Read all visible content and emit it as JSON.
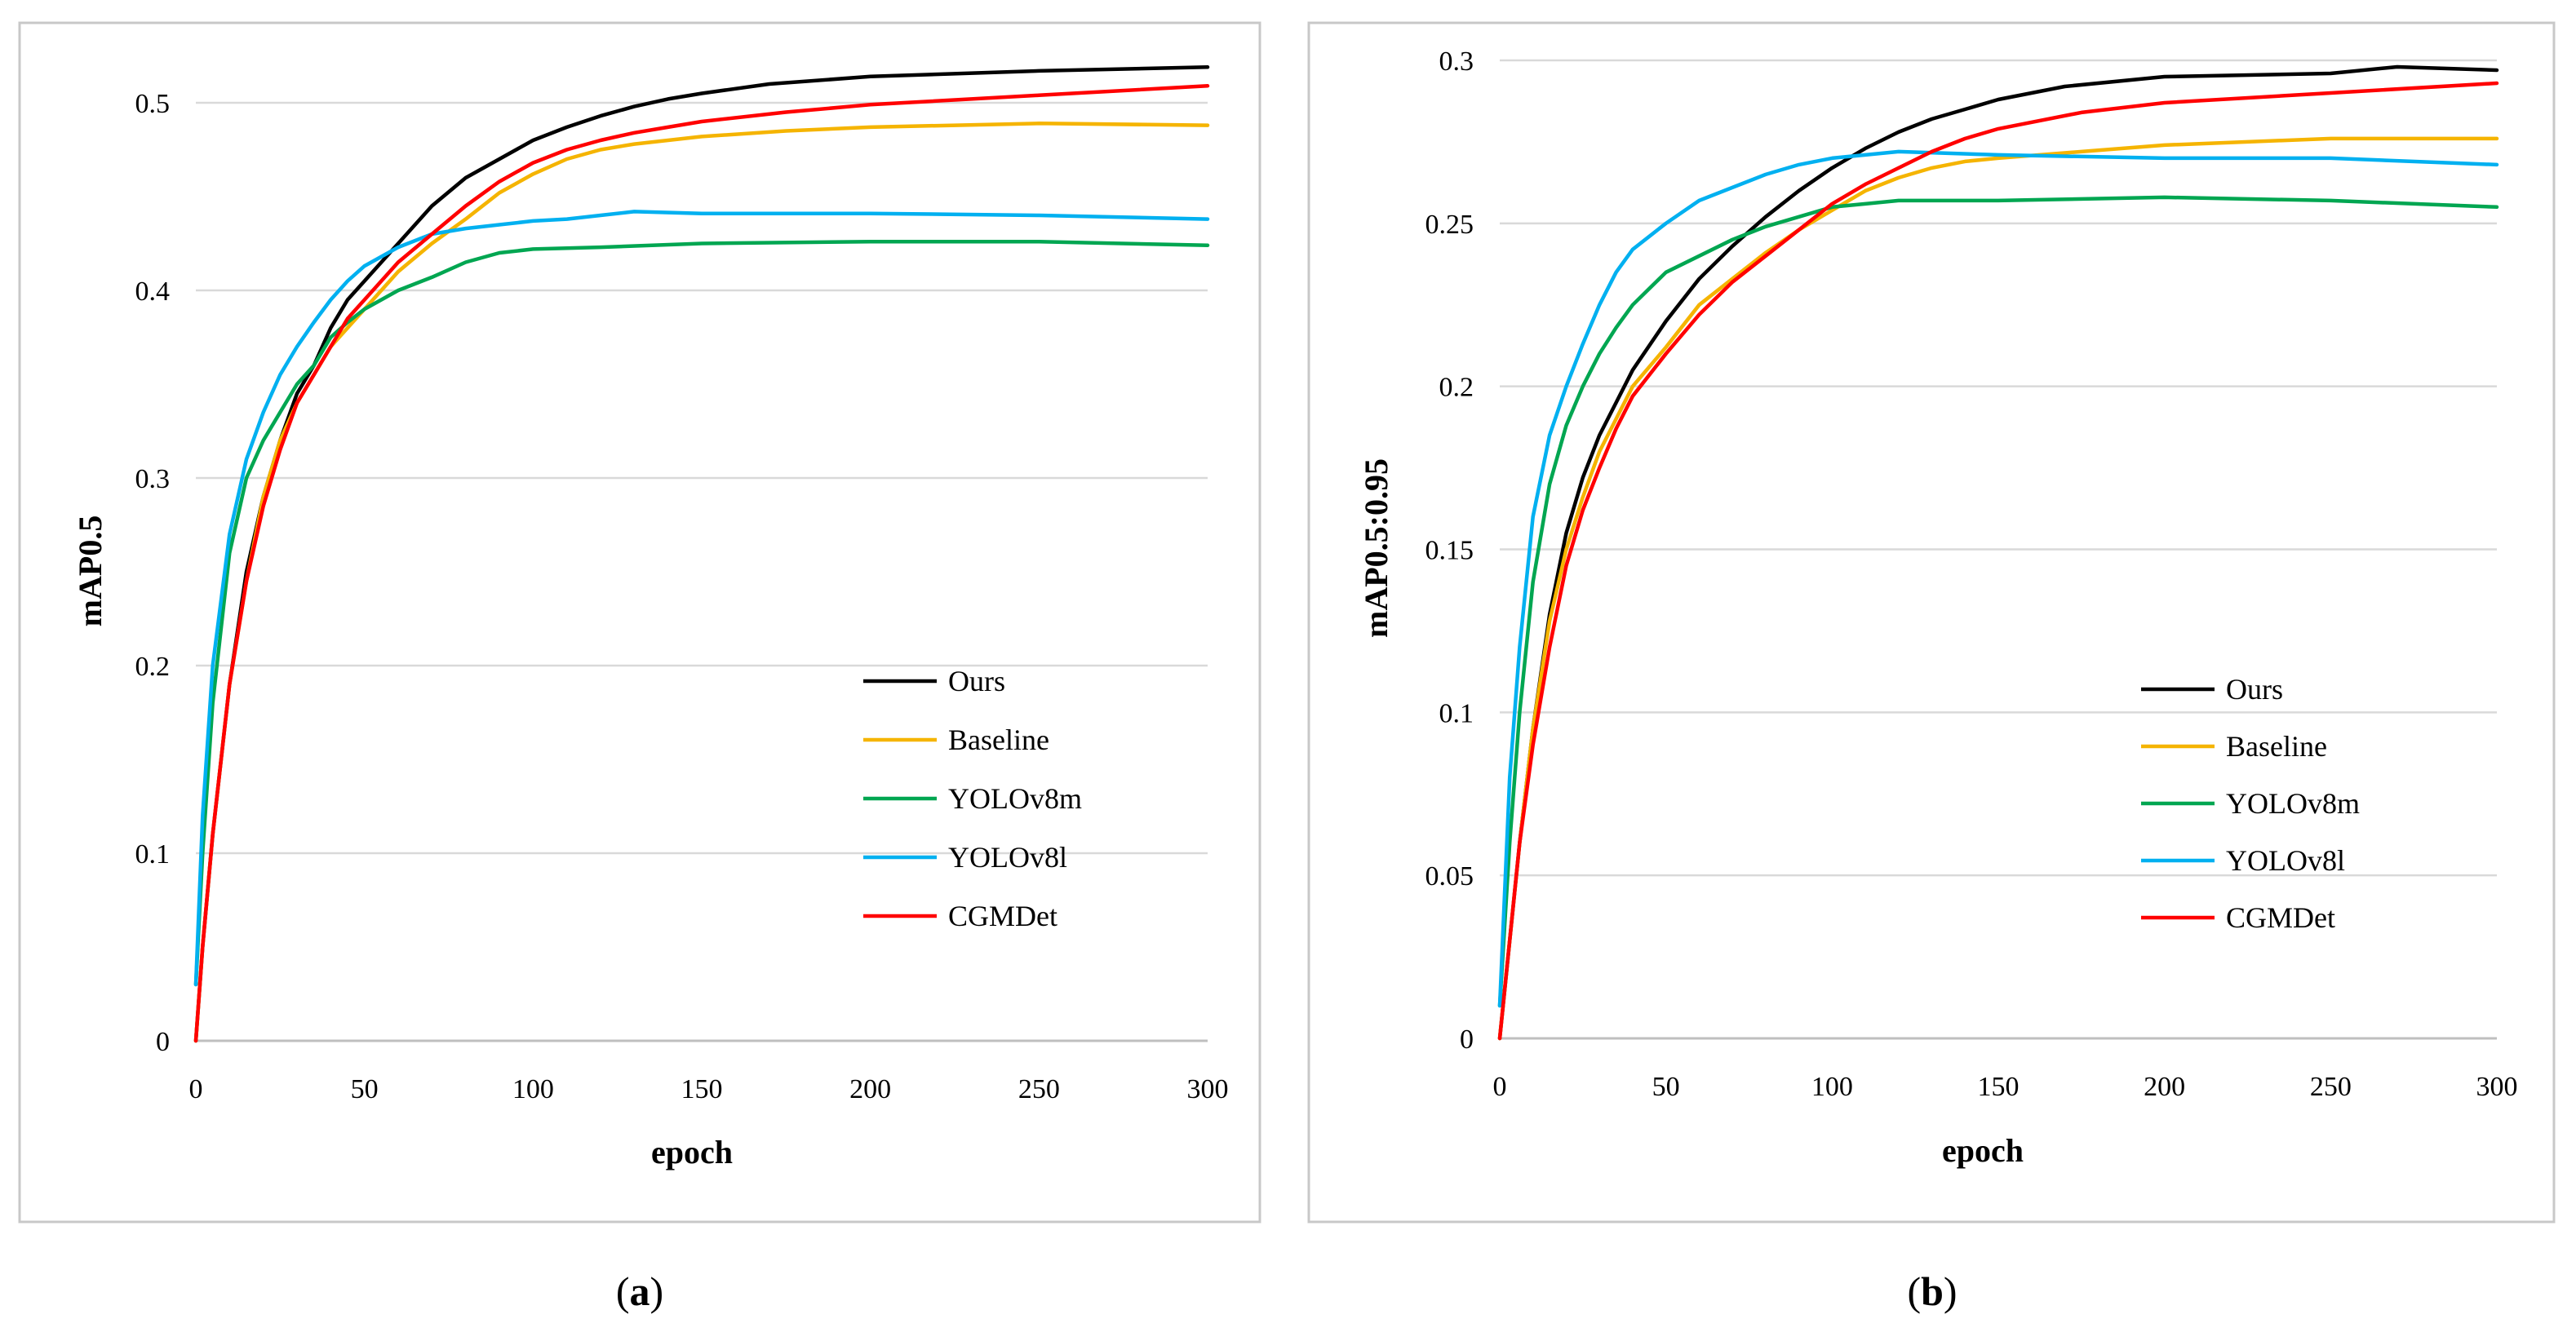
{
  "chart_data": [
    {
      "type": "line",
      "caption_letter": "a",
      "xlabel": "epoch",
      "ylabel": "mAP0.5",
      "xlim": [
        0,
        300
      ],
      "ylim": [
        0,
        0.5
      ],
      "x_ticks": [
        0,
        50,
        100,
        150,
        200,
        250,
        300
      ],
      "y_ticks": [
        0,
        0.1,
        0.2,
        0.3,
        0.4,
        0.5
      ],
      "x_tick_labels": [
        "0",
        "50",
        "100",
        "150",
        "200",
        "250",
        "300"
      ],
      "y_tick_labels": [
        "0",
        "0.1",
        "0.2",
        "0.3",
        "0.4",
        "0.5"
      ],
      "grid": true,
      "legend_position": "bottom-right",
      "series": [
        {
          "name": "Ours",
          "color": "#000000",
          "points": [
            [
              0,
              0
            ],
            [
              2,
              0.05
            ],
            [
              5,
              0.11
            ],
            [
              10,
              0.19
            ],
            [
              15,
              0.25
            ],
            [
              20,
              0.29
            ],
            [
              25,
              0.32
            ],
            [
              30,
              0.345
            ],
            [
              35,
              0.36
            ],
            [
              40,
              0.38
            ],
            [
              45,
              0.395
            ],
            [
              50,
              0.405
            ],
            [
              60,
              0.425
            ],
            [
              70,
              0.445
            ],
            [
              80,
              0.46
            ],
            [
              90,
              0.47
            ],
            [
              100,
              0.48
            ],
            [
              110,
              0.487
            ],
            [
              120,
              0.493
            ],
            [
              130,
              0.498
            ],
            [
              140,
              0.502
            ],
            [
              150,
              0.505
            ],
            [
              170,
              0.51
            ],
            [
              200,
              0.514
            ],
            [
              250,
              0.517
            ],
            [
              300,
              0.519
            ]
          ]
        },
        {
          "name": "Baseline",
          "color": "#f5b400",
          "points": [
            [
              0,
              0
            ],
            [
              2,
              0.05
            ],
            [
              5,
              0.11
            ],
            [
              10,
              0.19
            ],
            [
              15,
              0.245
            ],
            [
              20,
              0.29
            ],
            [
              25,
              0.32
            ],
            [
              30,
              0.34
            ],
            [
              35,
              0.355
            ],
            [
              40,
              0.37
            ],
            [
              45,
              0.38
            ],
            [
              50,
              0.39
            ],
            [
              60,
              0.41
            ],
            [
              70,
              0.425
            ],
            [
              80,
              0.438
            ],
            [
              90,
              0.452
            ],
            [
              100,
              0.462
            ],
            [
              110,
              0.47
            ],
            [
              120,
              0.475
            ],
            [
              130,
              0.478
            ],
            [
              140,
              0.48
            ],
            [
              150,
              0.482
            ],
            [
              175,
              0.485
            ],
            [
              200,
              0.487
            ],
            [
              250,
              0.489
            ],
            [
              300,
              0.488
            ]
          ]
        },
        {
          "name": "YOLOv8m",
          "color": "#00a651",
          "points": [
            [
              0,
              0.03
            ],
            [
              2,
              0.1
            ],
            [
              5,
              0.18
            ],
            [
              10,
              0.26
            ],
            [
              15,
              0.3
            ],
            [
              20,
              0.32
            ],
            [
              25,
              0.335
            ],
            [
              30,
              0.35
            ],
            [
              35,
              0.36
            ],
            [
              40,
              0.375
            ],
            [
              45,
              0.383
            ],
            [
              50,
              0.39
            ],
            [
              60,
              0.4
            ],
            [
              70,
              0.407
            ],
            [
              80,
              0.415
            ],
            [
              90,
              0.42
            ],
            [
              100,
              0.422
            ],
            [
              120,
              0.423
            ],
            [
              150,
              0.425
            ],
            [
              200,
              0.426
            ],
            [
              250,
              0.426
            ],
            [
              300,
              0.424
            ]
          ]
        },
        {
          "name": "YOLOv8l",
          "color": "#00b0f0",
          "points": [
            [
              0,
              0.03
            ],
            [
              2,
              0.12
            ],
            [
              5,
              0.2
            ],
            [
              10,
              0.27
            ],
            [
              15,
              0.31
            ],
            [
              20,
              0.335
            ],
            [
              25,
              0.355
            ],
            [
              30,
              0.37
            ],
            [
              35,
              0.383
            ],
            [
              40,
              0.395
            ],
            [
              45,
              0.405
            ],
            [
              50,
              0.413
            ],
            [
              60,
              0.423
            ],
            [
              70,
              0.43
            ],
            [
              80,
              0.433
            ],
            [
              90,
              0.435
            ],
            [
              100,
              0.437
            ],
            [
              110,
              0.438
            ],
            [
              120,
              0.44
            ],
            [
              130,
              0.442
            ],
            [
              150,
              0.441
            ],
            [
              200,
              0.441
            ],
            [
              250,
              0.44
            ],
            [
              300,
              0.438
            ]
          ]
        },
        {
          "name": "CGMDet",
          "color": "#ff0000",
          "points": [
            [
              0,
              0
            ],
            [
              2,
              0.05
            ],
            [
              5,
              0.11
            ],
            [
              10,
              0.19
            ],
            [
              15,
              0.245
            ],
            [
              20,
              0.285
            ],
            [
              25,
              0.315
            ],
            [
              30,
              0.34
            ],
            [
              35,
              0.355
            ],
            [
              40,
              0.37
            ],
            [
              45,
              0.385
            ],
            [
              50,
              0.395
            ],
            [
              60,
              0.415
            ],
            [
              70,
              0.43
            ],
            [
              80,
              0.445
            ],
            [
              90,
              0.458
            ],
            [
              100,
              0.468
            ],
            [
              110,
              0.475
            ],
            [
              120,
              0.48
            ],
            [
              130,
              0.484
            ],
            [
              140,
              0.487
            ],
            [
              150,
              0.49
            ],
            [
              175,
              0.495
            ],
            [
              200,
              0.499
            ],
            [
              250,
              0.504
            ],
            [
              300,
              0.509
            ]
          ]
        }
      ]
    },
    {
      "type": "line",
      "caption_letter": "b",
      "xlabel": "epoch",
      "ylabel": "mAP0.5:0.95",
      "xlim": [
        0,
        300
      ],
      "ylim": [
        0,
        0.3
      ],
      "x_ticks": [
        0,
        50,
        100,
        150,
        200,
        250,
        300
      ],
      "y_ticks": [
        0,
        0.05,
        0.1,
        0.15,
        0.2,
        0.25,
        0.3
      ],
      "x_tick_labels": [
        "0",
        "50",
        "100",
        "150",
        "200",
        "250",
        "300"
      ],
      "y_tick_labels": [
        "0",
        "0.05",
        "0.1",
        "0.15",
        "0.2",
        "0.25",
        "0.3"
      ],
      "grid": true,
      "legend_position": "bottom-right",
      "series": [
        {
          "name": "Ours",
          "color": "#000000",
          "points": [
            [
              0,
              0
            ],
            [
              3,
              0.03
            ],
            [
              6,
              0.06
            ],
            [
              10,
              0.095
            ],
            [
              15,
              0.13
            ],
            [
              20,
              0.155
            ],
            [
              25,
              0.172
            ],
            [
              30,
              0.185
            ],
            [
              35,
              0.195
            ],
            [
              40,
              0.205
            ],
            [
              50,
              0.22
            ],
            [
              60,
              0.233
            ],
            [
              70,
              0.243
            ],
            [
              80,
              0.252
            ],
            [
              90,
              0.26
            ],
            [
              100,
              0.267
            ],
            [
              110,
              0.273
            ],
            [
              120,
              0.278
            ],
            [
              130,
              0.282
            ],
            [
              140,
              0.285
            ],
            [
              150,
              0.288
            ],
            [
              170,
              0.292
            ],
            [
              200,
              0.295
            ],
            [
              250,
              0.296
            ],
            [
              270,
              0.298
            ],
            [
              300,
              0.297
            ]
          ]
        },
        {
          "name": "Baseline",
          "color": "#f5b400",
          "points": [
            [
              0,
              0
            ],
            [
              3,
              0.03
            ],
            [
              6,
              0.06
            ],
            [
              10,
              0.095
            ],
            [
              15,
              0.128
            ],
            [
              20,
              0.15
            ],
            [
              25,
              0.166
            ],
            [
              30,
              0.18
            ],
            [
              35,
              0.19
            ],
            [
              40,
              0.2
            ],
            [
              50,
              0.212
            ],
            [
              60,
              0.225
            ],
            [
              70,
              0.233
            ],
            [
              80,
              0.241
            ],
            [
              90,
              0.248
            ],
            [
              100,
              0.254
            ],
            [
              110,
              0.26
            ],
            [
              120,
              0.264
            ],
            [
              130,
              0.267
            ],
            [
              140,
              0.269
            ],
            [
              150,
              0.27
            ],
            [
              175,
              0.272
            ],
            [
              200,
              0.274
            ],
            [
              250,
              0.276
            ],
            [
              300,
              0.276
            ]
          ]
        },
        {
          "name": "YOLOv8m",
          "color": "#00a651",
          "points": [
            [
              0,
              0.01
            ],
            [
              3,
              0.06
            ],
            [
              6,
              0.1
            ],
            [
              10,
              0.14
            ],
            [
              15,
              0.17
            ],
            [
              20,
              0.188
            ],
            [
              25,
              0.2
            ],
            [
              30,
              0.21
            ],
            [
              35,
              0.218
            ],
            [
              40,
              0.225
            ],
            [
              50,
              0.235
            ],
            [
              60,
              0.24
            ],
            [
              70,
              0.245
            ],
            [
              80,
              0.249
            ],
            [
              90,
              0.252
            ],
            [
              100,
              0.255
            ],
            [
              110,
              0.256
            ],
            [
              120,
              0.257
            ],
            [
              150,
              0.257
            ],
            [
              200,
              0.258
            ],
            [
              250,
              0.257
            ],
            [
              300,
              0.255
            ]
          ]
        },
        {
          "name": "YOLOv8l",
          "color": "#00b0f0",
          "points": [
            [
              0,
              0.01
            ],
            [
              3,
              0.08
            ],
            [
              6,
              0.12
            ],
            [
              10,
              0.16
            ],
            [
              15,
              0.185
            ],
            [
              20,
              0.2
            ],
            [
              25,
              0.213
            ],
            [
              30,
              0.225
            ],
            [
              35,
              0.235
            ],
            [
              40,
              0.242
            ],
            [
              50,
              0.25
            ],
            [
              60,
              0.257
            ],
            [
              70,
              0.261
            ],
            [
              80,
              0.265
            ],
            [
              90,
              0.268
            ],
            [
              100,
              0.27
            ],
            [
              110,
              0.271
            ],
            [
              120,
              0.272
            ],
            [
              150,
              0.271
            ],
            [
              200,
              0.27
            ],
            [
              250,
              0.27
            ],
            [
              300,
              0.268
            ]
          ]
        },
        {
          "name": "CGMDet",
          "color": "#ff0000",
          "points": [
            [
              0,
              0
            ],
            [
              3,
              0.03
            ],
            [
              6,
              0.06
            ],
            [
              10,
              0.09
            ],
            [
              15,
              0.12
            ],
            [
              20,
              0.145
            ],
            [
              25,
              0.162
            ],
            [
              30,
              0.175
            ],
            [
              35,
              0.187
            ],
            [
              40,
              0.197
            ],
            [
              50,
              0.21
            ],
            [
              60,
              0.222
            ],
            [
              70,
              0.232
            ],
            [
              80,
              0.24
            ],
            [
              90,
              0.248
            ],
            [
              100,
              0.256
            ],
            [
              110,
              0.262
            ],
            [
              120,
              0.267
            ],
            [
              130,
              0.272
            ],
            [
              140,
              0.276
            ],
            [
              150,
              0.279
            ],
            [
              175,
              0.284
            ],
            [
              200,
              0.287
            ],
            [
              250,
              0.29
            ],
            [
              300,
              0.293
            ]
          ]
        }
      ]
    }
  ]
}
